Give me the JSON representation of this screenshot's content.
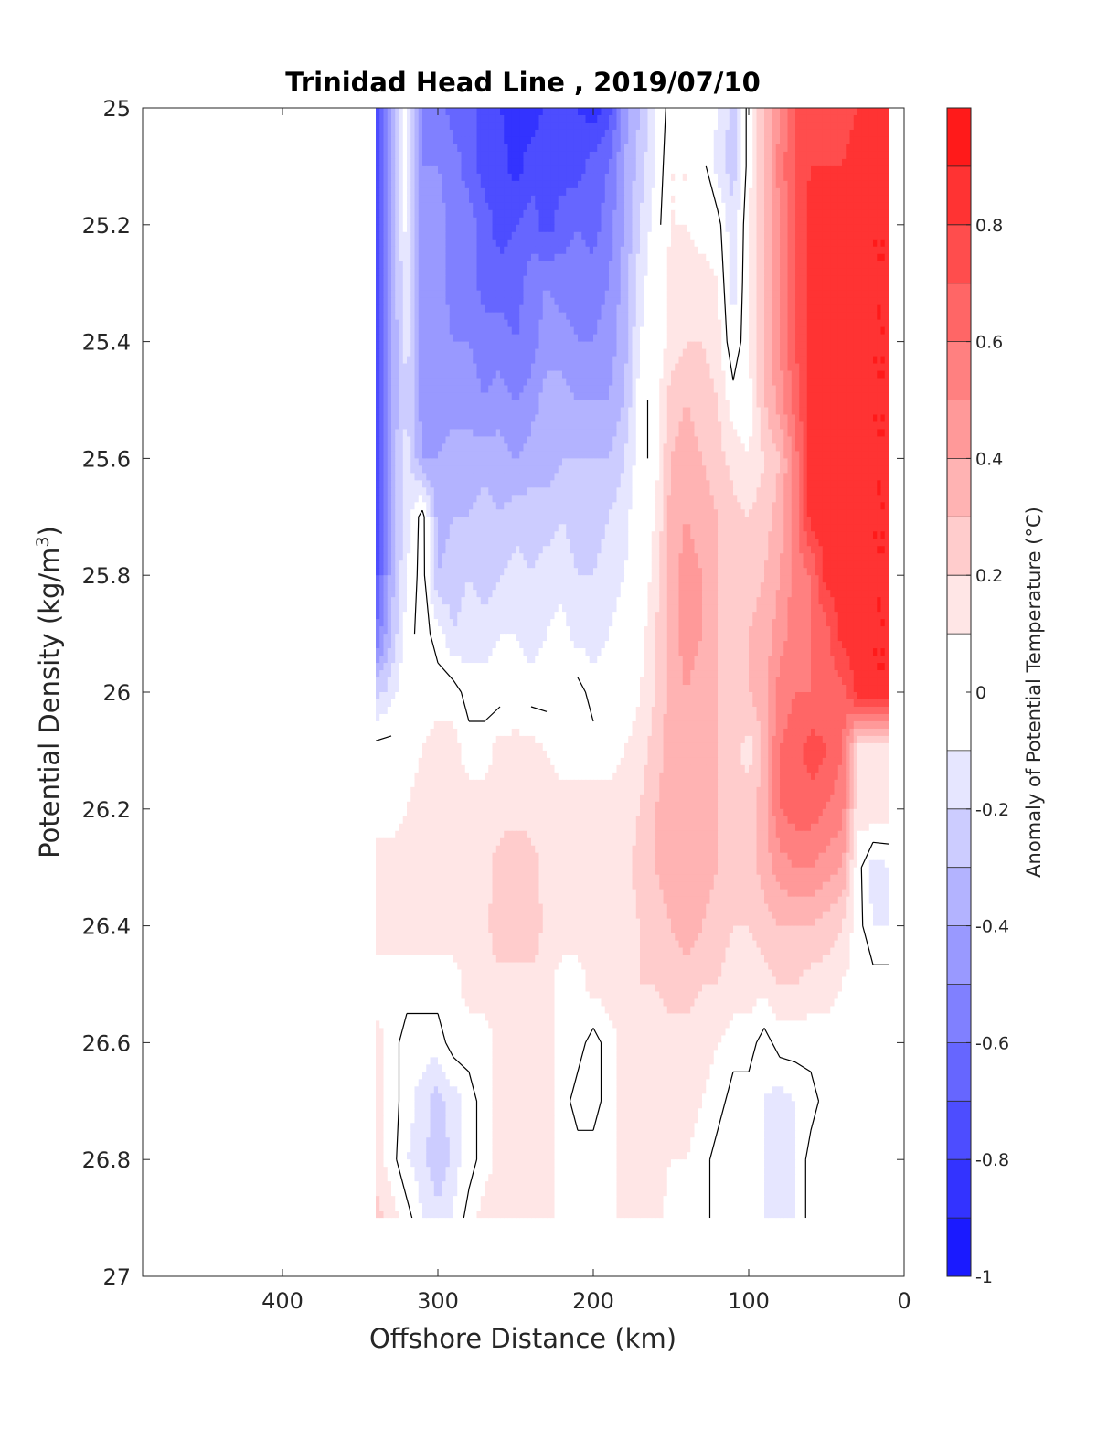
{
  "chart_data": {
    "type": "heatmap",
    "title": "Trinidad Head Line , 2019/07/10",
    "xlabel": "Offshore Distance (km)",
    "ylabel_main": "Potential Density (kg/m",
    "ylabel_sup": "3",
    "ylabel_end": ")",
    "colorbar_label": "Anomaly of Potential Temperature (°C)",
    "xlim": [
      490,
      0
    ],
    "ylim": [
      25,
      27
    ],
    "x_reversed": true,
    "y_reversed": true,
    "xticks": [
      400,
      300,
      200,
      100,
      0
    ],
    "xtick_labels": [
      "400",
      "300",
      "200",
      "100",
      "0"
    ],
    "yticks": [
      25,
      25.2,
      25.4,
      25.6,
      25.8,
      26,
      26.2,
      26.4,
      26.6,
      26.8,
      27
    ],
    "ytick_labels": [
      "25",
      "25.2",
      "25.4",
      "25.6",
      "25.8",
      "26",
      "26.2",
      "26.4",
      "26.6",
      "26.8",
      "27"
    ],
    "colorbar": {
      "range": [
        -1,
        1
      ],
      "levels": [
        -1,
        -0.9,
        -0.8,
        -0.7,
        -0.6,
        -0.5,
        -0.4,
        -0.3,
        -0.2,
        -0.1,
        0.1,
        0.2,
        0.3,
        0.4,
        0.5,
        0.6,
        0.7,
        0.8,
        0.9,
        1
      ],
      "ticks": [
        -1,
        -0.8,
        -0.6,
        -0.4,
        -0.2,
        0,
        0.2,
        0.4,
        0.6,
        0.8
      ],
      "tick_labels": [
        "-1",
        "-0.8",
        "-0.6",
        "-0.4",
        "-0.2",
        "0",
        "0.2",
        "0.4",
        "0.6",
        "0.8"
      ],
      "colors": [
        "#0000ff",
        "#1a1aff",
        "#3333ff",
        "#4d4dff",
        "#6666ff",
        "#8080ff",
        "#9999ff",
        "#b3b3ff",
        "#ccccff",
        "#e6e6ff",
        "#ffffff",
        "#ffe6e6",
        "#ffcccc",
        "#ffb3b3",
        "#ff9999",
        "#ff8080",
        "#ff6666",
        "#ff4d4d",
        "#ff3333",
        "#ff1a1a",
        "#ff0000"
      ]
    },
    "data_extent": {
      "x": [
        10,
        340
      ],
      "y": [
        25,
        26.9
      ]
    },
    "field_x": [
      340,
      330,
      320,
      310,
      300,
      290,
      280,
      270,
      260,
      250,
      240,
      230,
      220,
      210,
      200,
      190,
      180,
      170,
      160,
      150,
      140,
      130,
      120,
      110,
      100,
      90,
      80,
      70,
      60,
      50,
      40,
      30,
      20,
      10
    ],
    "field_y": [
      25,
      25.1,
      25.2,
      25.3,
      25.4,
      25.5,
      25.6,
      25.7,
      25.8,
      25.9,
      26,
      26.1,
      26.2,
      26.3,
      26.4,
      26.5,
      26.6,
      26.7,
      26.8,
      26.9
    ],
    "field_values": [
      [
        -0.85,
        -0.45,
        -0.05,
        -0.55,
        -0.55,
        -0.65,
        -0.65,
        -0.75,
        -0.8,
        -0.85,
        -0.85,
        -0.8,
        -0.75,
        -0.8,
        -0.85,
        -0.75,
        -0.45,
        -0.3,
        -0.1,
        0.05,
        0.05,
        0.0,
        -0.1,
        -0.25,
        0.05,
        0.3,
        0.5,
        0.7,
        0.7,
        0.7,
        0.75,
        0.8,
        0.85,
        0.9
      ],
      [
        -0.85,
        -0.4,
        -0.05,
        -0.5,
        -0.5,
        -0.55,
        -0.65,
        -0.75,
        -0.75,
        -0.85,
        -0.75,
        -0.7,
        -0.75,
        -0.75,
        -0.65,
        -0.6,
        -0.4,
        -0.25,
        -0.1,
        0.1,
        0.1,
        0.05,
        -0.15,
        -0.25,
        0.05,
        0.3,
        0.55,
        0.7,
        0.8,
        0.8,
        0.8,
        0.85,
        0.85,
        0.9
      ],
      [
        -0.85,
        -0.4,
        -0.05,
        -0.45,
        -0.45,
        -0.55,
        -0.55,
        -0.65,
        -0.75,
        -0.7,
        -0.65,
        -0.75,
        -0.65,
        -0.6,
        -0.65,
        -0.55,
        -0.4,
        -0.2,
        -0.05,
        0.1,
        0.1,
        0.05,
        0.05,
        -0.2,
        0.1,
        0.3,
        0.5,
        0.7,
        0.85,
        0.85,
        0.85,
        0.85,
        0.9,
        0.9
      ],
      [
        -0.8,
        -0.4,
        -0.1,
        -0.45,
        -0.45,
        -0.55,
        -0.55,
        -0.65,
        -0.65,
        -0.65,
        -0.55,
        -0.5,
        -0.55,
        -0.55,
        -0.55,
        -0.5,
        -0.35,
        -0.15,
        0.0,
        0.15,
        0.2,
        0.15,
        0.1,
        -0.15,
        0.1,
        0.3,
        0.5,
        0.7,
        0.85,
        0.85,
        0.85,
        0.85,
        0.9,
        0.9
      ],
      [
        -0.8,
        -0.4,
        -0.15,
        -0.45,
        -0.45,
        -0.5,
        -0.5,
        -0.55,
        -0.55,
        -0.6,
        -0.55,
        -0.45,
        -0.45,
        -0.5,
        -0.5,
        -0.45,
        -0.35,
        -0.1,
        0.0,
        0.15,
        0.2,
        0.2,
        0.15,
        -0.1,
        0.1,
        0.3,
        0.5,
        0.7,
        0.85,
        0.85,
        0.85,
        0.85,
        0.9,
        0.9
      ],
      [
        -0.8,
        -0.4,
        -0.2,
        -0.45,
        -0.45,
        -0.45,
        -0.45,
        -0.5,
        -0.45,
        -0.5,
        -0.45,
        -0.35,
        -0.35,
        -0.4,
        -0.4,
        -0.4,
        -0.3,
        -0.05,
        0.05,
        0.25,
        0.3,
        0.25,
        0.2,
        0.05,
        0.05,
        0.3,
        0.45,
        0.65,
        0.85,
        0.85,
        0.85,
        0.85,
        0.9,
        0.9
      ],
      [
        -0.8,
        -0.35,
        -0.15,
        -0.4,
        -0.4,
        -0.35,
        -0.35,
        -0.35,
        -0.35,
        -0.4,
        -0.35,
        -0.35,
        -0.3,
        -0.3,
        -0.3,
        -0.3,
        -0.2,
        -0.05,
        0.05,
        0.3,
        0.35,
        0.3,
        0.25,
        0.15,
        0.1,
        0.2,
        0.3,
        0.55,
        0.85,
        0.85,
        0.85,
        0.85,
        0.9,
        0.9
      ],
      [
        -0.8,
        -0.35,
        -0.15,
        0.05,
        -0.35,
        -0.3,
        -0.3,
        -0.25,
        -0.3,
        -0.25,
        -0.25,
        -0.25,
        -0.2,
        -0.25,
        -0.25,
        -0.2,
        -0.15,
        0.0,
        0.1,
        0.35,
        0.4,
        0.35,
        0.3,
        0.25,
        0.2,
        0.25,
        0.35,
        0.55,
        0.85,
        0.85,
        0.85,
        0.85,
        0.9,
        0.9
      ],
      [
        -0.75,
        -0.35,
        -0.1,
        0.05,
        -0.3,
        -0.25,
        -0.2,
        -0.25,
        -0.2,
        -0.15,
        -0.2,
        -0.15,
        -0.15,
        -0.2,
        -0.2,
        -0.15,
        -0.1,
        0.0,
        0.15,
        0.35,
        0.45,
        0.4,
        0.3,
        0.25,
        0.25,
        0.3,
        0.4,
        0.55,
        0.6,
        0.85,
        0.85,
        0.85,
        0.9,
        0.9
      ],
      [
        -0.6,
        -0.3,
        -0.05,
        0.05,
        -0.05,
        -0.2,
        -0.15,
        -0.15,
        -0.1,
        -0.1,
        -0.15,
        -0.1,
        -0.05,
        -0.15,
        -0.15,
        -0.1,
        -0.05,
        0.05,
        0.2,
        0.35,
        0.45,
        0.4,
        0.3,
        0.25,
        0.3,
        0.35,
        0.45,
        0.55,
        0.6,
        0.65,
        0.85,
        0.85,
        0.9,
        0.9
      ],
      [
        -0.25,
        -0.15,
        0.0,
        0.05,
        0.05,
        0.05,
        -0.05,
        -0.05,
        -0.05,
        0.0,
        -0.05,
        -0.05,
        0.0,
        0.05,
        -0.05,
        0.0,
        0.0,
        0.1,
        0.2,
        0.35,
        0.4,
        0.35,
        0.3,
        0.25,
        0.3,
        0.35,
        0.55,
        0.6,
        0.6,
        0.65,
        0.65,
        0.85,
        0.9,
        0.9
      ],
      [
        0.05,
        0.05,
        0.05,
        0.1,
        0.15,
        0.15,
        0.05,
        0.05,
        0.15,
        0.15,
        0.15,
        0.1,
        0.05,
        0.05,
        0.05,
        0.05,
        0.1,
        0.15,
        0.25,
        0.35,
        0.4,
        0.35,
        0.3,
        0.25,
        0.15,
        0.35,
        0.6,
        0.65,
        0.75,
        0.7,
        0.6,
        0.15,
        0.15,
        0.15
      ],
      [
        0.05,
        0.05,
        0.1,
        0.15,
        0.15,
        0.15,
        0.15,
        0.15,
        0.15,
        0.15,
        0.15,
        0.15,
        0.15,
        0.15,
        0.15,
        0.15,
        0.15,
        0.2,
        0.3,
        0.35,
        0.4,
        0.35,
        0.3,
        0.25,
        0.25,
        0.35,
        0.6,
        0.65,
        0.65,
        0.6,
        0.55,
        0.15,
        0.2,
        0.15
      ],
      [
        0.15,
        0.15,
        0.15,
        0.15,
        0.15,
        0.15,
        0.15,
        0.15,
        0.25,
        0.3,
        0.25,
        0.15,
        0.15,
        0.15,
        0.15,
        0.15,
        0.15,
        0.25,
        0.3,
        0.35,
        0.4,
        0.35,
        0.3,
        0.25,
        0.25,
        0.35,
        0.45,
        0.5,
        0.5,
        0.45,
        0.4,
        0.05,
        -0.15,
        -0.1
      ],
      [
        0.15,
        0.15,
        0.15,
        0.15,
        0.15,
        0.15,
        0.15,
        0.15,
        0.3,
        0.3,
        0.3,
        0.15,
        0.15,
        0.15,
        0.15,
        0.15,
        0.15,
        0.2,
        0.25,
        0.3,
        0.35,
        0.3,
        0.25,
        0.2,
        0.2,
        0.25,
        0.3,
        0.3,
        0.3,
        0.25,
        0.2,
        0.05,
        -0.1,
        -0.1
      ],
      [
        0.05,
        0.05,
        0.05,
        0.05,
        0.05,
        0.05,
        0.15,
        0.15,
        0.15,
        0.15,
        0.15,
        0.15,
        0.05,
        0.05,
        0.15,
        0.15,
        0.15,
        0.2,
        0.2,
        0.25,
        0.25,
        0.2,
        0.2,
        0.15,
        0.15,
        0.15,
        0.2,
        0.2,
        0.15,
        0.15,
        0.1,
        0.05,
        0.05,
        0.05
      ],
      [
        0.15,
        0.05,
        -0.05,
        -0.05,
        -0.05,
        0.05,
        0.05,
        0.05,
        0.15,
        0.15,
        0.15,
        0.15,
        0.05,
        0.05,
        -0.05,
        0.05,
        0.15,
        0.15,
        0.15,
        0.15,
        0.15,
        0.15,
        0.1,
        0.05,
        0.05,
        -0.05,
        0.05,
        0.05,
        0.05,
        0.05,
        0.05,
        0.05,
        0.05,
        0.05
      ],
      [
        0.15,
        0.05,
        -0.05,
        -0.15,
        -0.25,
        -0.15,
        -0.05,
        0.05,
        0.15,
        0.15,
        0.15,
        0.15,
        0.05,
        -0.05,
        -0.05,
        0.05,
        0.15,
        0.15,
        0.15,
        0.15,
        0.15,
        0.1,
        0.05,
        -0.05,
        -0.05,
        -0.1,
        -0.15,
        -0.1,
        -0.05,
        0.05,
        0.05,
        0.05,
        0.05,
        0.05
      ],
      [
        0.15,
        0.05,
        -0.1,
        -0.15,
        -0.3,
        -0.15,
        -0.05,
        0.05,
        0.15,
        0.15,
        0.15,
        0.15,
        0.05,
        0.05,
        0.05,
        0.05,
        0.15,
        0.15,
        0.15,
        0.1,
        0.1,
        0.05,
        -0.05,
        -0.05,
        -0.05,
        -0.1,
        -0.15,
        -0.1,
        0.05,
        0.05,
        0.05,
        0.05,
        0.05,
        0.05
      ],
      [
        0.25,
        0.15,
        0.05,
        -0.1,
        -0.15,
        -0.1,
        0.05,
        0.15,
        0.15,
        0.15,
        0.15,
        0.15,
        0.05,
        0.05,
        0.05,
        0.05,
        0.15,
        0.15,
        0.15,
        0.05,
        0.05,
        0.05,
        -0.05,
        -0.05,
        -0.05,
        -0.1,
        -0.15,
        -0.1,
        0.05,
        0.05,
        0.05,
        0.05,
        0.05,
        0.05
      ]
    ]
  }
}
